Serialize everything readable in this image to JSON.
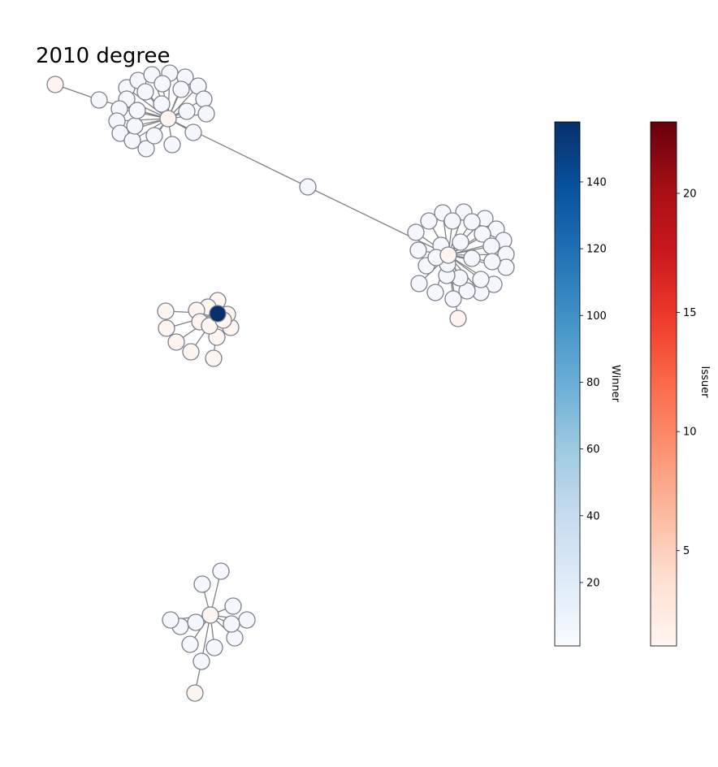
{
  "title": "2010 degree",
  "colorbars": [
    {
      "name": "winner",
      "label": "Winner",
      "colormap": "Blues",
      "min": 1,
      "max": 158,
      "ticks": [
        20,
        40,
        60,
        80,
        100,
        120,
        140
      ],
      "tick_labels": [
        "20",
        "40",
        "60",
        "80",
        "100",
        "120",
        "140"
      ],
      "colors": [
        "#f7fbff",
        "#deebf7",
        "#c6dbef",
        "#9ecae1",
        "#6baed6",
        "#4292c6",
        "#2171b5",
        "#08519c",
        "#08306b"
      ]
    },
    {
      "name": "issuer",
      "label": "Issuer",
      "colormap": "Reds",
      "min": 1,
      "max": 23,
      "ticks": [
        5,
        10,
        15,
        20
      ],
      "tick_labels": [
        "5",
        "10",
        "15",
        "20"
      ],
      "colors": [
        "#fff5f0",
        "#fee0d2",
        "#fcbba1",
        "#fc9272",
        "#fb6a4a",
        "#ef3b2c",
        "#cb181d",
        "#a50f15",
        "#67000d"
      ]
    }
  ],
  "graph": {
    "winner_node_fill": "#f5f7fc",
    "issuer_node_fill": "#fff5f0",
    "edge_color": "#808080",
    "node_edge_color": "#7a7f8c",
    "components": [
      {
        "name": "component-top",
        "hubs": [
          {
            "name": "hub-a",
            "role": "issuer",
            "degree": 1
          },
          {
            "name": "hub-b",
            "role": "issuer",
            "degree": 1
          }
        ],
        "bridge_nodes": 2,
        "pendant_issuers": 1,
        "leaf_counts": [
          28,
          30
        ]
      },
      {
        "name": "component-middle",
        "hubs": [
          {
            "name": "hub-c",
            "role": "winner",
            "degree": 158
          }
        ],
        "leaf_count": 14
      },
      {
        "name": "component-bottom",
        "hubs": [
          {
            "name": "hub-d",
            "role": "issuer",
            "degree": 1
          }
        ],
        "leaf_count": 12,
        "pendant_issuers": 1
      }
    ]
  }
}
